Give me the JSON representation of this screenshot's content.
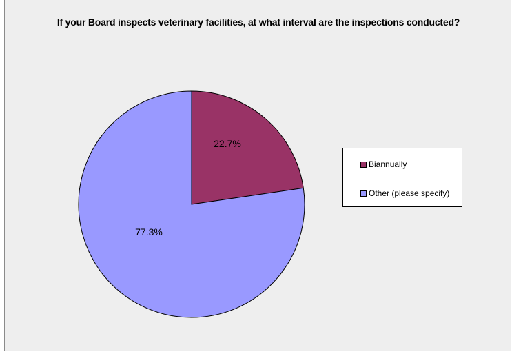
{
  "chart_data": {
    "type": "pie",
    "title": "If your Board inspects veterinary facilities, at what interval are the inspections conducted?",
    "slices": [
      {
        "label": "Biannually",
        "value": 22.7,
        "display": "22.7%",
        "color": "#993366"
      },
      {
        "label": "Other (please specify)",
        "value": 77.3,
        "display": "77.3%",
        "color": "#9999ff"
      }
    ],
    "legend_position": "right"
  }
}
